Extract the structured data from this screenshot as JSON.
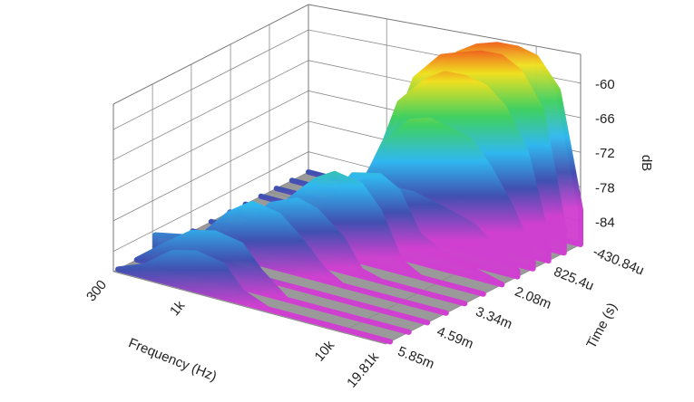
{
  "chart_data": {
    "type": "waterfall",
    "x_label": "Frequency (Hz)",
    "y_label": "Time (s)",
    "z_label": "dB",
    "xscale": "log",
    "xlim": [
      300,
      19810
    ],
    "xticks": [
      300,
      {
        "value": 1000,
        "label": "1k"
      },
      {
        "value": 10000,
        "label": "10k"
      },
      {
        "value": 19810,
        "label": "19.81k"
      }
    ],
    "ylim": [
      -0.00043084,
      0.00585
    ],
    "yticks": [
      {
        "value": -0.00043084,
        "label": "-430.84u"
      },
      {
        "value": 0.0008254,
        "label": "825.4u"
      },
      {
        "value": 0.00208,
        "label": "2.08m"
      },
      {
        "value": 0.00334,
        "label": "3.34m"
      },
      {
        "value": 0.00459,
        "label": "4.59m"
      },
      {
        "value": 0.00585,
        "label": "5.85m"
      }
    ],
    "zlim": [
      -88,
      -55
    ],
    "zticks": [
      -60,
      -66,
      -72,
      -78,
      -84
    ],
    "grid": true,
    "floor_color": "#9a9a9a",
    "colormap": [
      "#d040d0",
      "#4050b0",
      "#30b8f0",
      "#40d060",
      "#f0e020",
      "#f02020"
    ],
    "x": [
      300,
      450,
      700,
      1000,
      1500,
      2000,
      3000,
      4000,
      5500,
      7500,
      10000,
      14000,
      19810
    ],
    "series": [
      {
        "time": -0.00043084,
        "values": [
          -88,
          -88,
          -88,
          -86,
          -75,
          -64,
          -59,
          -57,
          -56,
          -56,
          -57,
          -62,
          -82
        ]
      },
      {
        "time": 0.0001,
        "values": [
          -88,
          -88,
          -88,
          -85,
          -73,
          -63,
          -58,
          -57,
          -56,
          -56,
          -58,
          -64,
          -84
        ]
      },
      {
        "time": 0.0006,
        "values": [
          -88,
          -88,
          -88,
          -86,
          -76,
          -66,
          -61,
          -59,
          -59,
          -60,
          -63,
          -70,
          -85
        ]
      },
      {
        "time": 0.0011,
        "values": [
          -88,
          -88,
          -88,
          -87,
          -80,
          -72,
          -67,
          -66,
          -67,
          -68,
          -72,
          -78,
          -86
        ]
      },
      {
        "time": 0.0016,
        "values": [
          -88,
          -88,
          -88,
          -88,
          -84,
          -80,
          -78,
          -78,
          -79,
          -80,
          -81,
          -84,
          -87
        ]
      },
      {
        "time": 0.0021,
        "values": [
          -88,
          -88,
          -88,
          -87,
          -80,
          -75,
          -74,
          -76,
          -83,
          -85,
          -86,
          -87,
          -88
        ]
      },
      {
        "time": 0.0027,
        "values": [
          -88,
          -88,
          -87,
          -80,
          -75,
          -73,
          -74,
          -78,
          -86,
          -88,
          -88,
          -88,
          -88
        ]
      },
      {
        "time": 0.0033,
        "values": [
          -88,
          -88,
          -84,
          -79,
          -77,
          -78,
          -82,
          -87,
          -88,
          -88,
          -88,
          -88,
          -88
        ]
      },
      {
        "time": 0.0039,
        "values": [
          -88,
          -86,
          -80,
          -77,
          -78,
          -81,
          -86,
          -88,
          -88,
          -88,
          -88,
          -88,
          -88
        ]
      },
      {
        "time": 0.0045,
        "values": [
          -85,
          -84,
          -85,
          -87,
          -88,
          -88,
          -88,
          -88,
          -88,
          -88,
          -88,
          -88,
          -88
        ]
      },
      {
        "time": 0.0051,
        "values": [
          -88,
          -84,
          -80,
          -79,
          -80,
          -84,
          -88,
          -88,
          -88,
          -88,
          -88,
          -88,
          -88
        ]
      },
      {
        "time": 0.0057,
        "values": [
          -88,
          -86,
          -82,
          -81,
          -82,
          -86,
          -88,
          -88,
          -88,
          -88,
          -88,
          -88,
          -88
        ]
      }
    ]
  }
}
